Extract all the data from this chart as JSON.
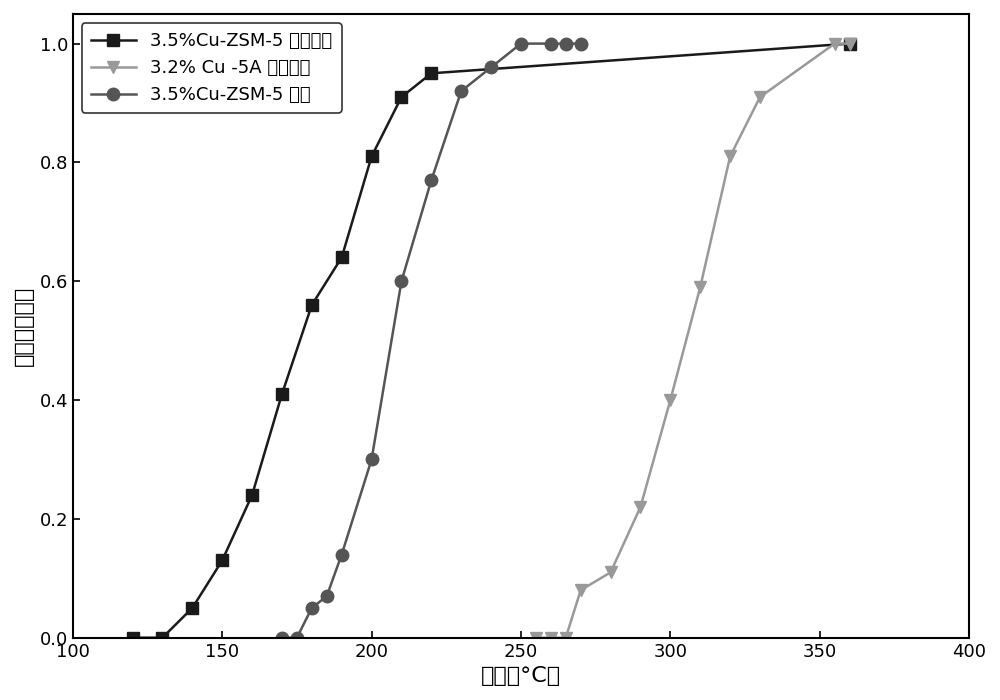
{
  "series1": {
    "label": "3.5%Cu-ZSM-5 分子筛膜",
    "color": "#1a1a1a",
    "marker": "s",
    "markercolor": "#1a1a1a",
    "x": [
      120,
      130,
      140,
      150,
      160,
      170,
      180,
      190,
      200,
      210,
      220,
      360
    ],
    "y": [
      0.0,
      0.0,
      0.05,
      0.13,
      0.24,
      0.41,
      0.56,
      0.64,
      0.81,
      0.91,
      0.95,
      1.0
    ]
  },
  "series2": {
    "label": "3.2% Cu -5A 分子筛膜",
    "color": "#999999",
    "marker": "v",
    "markercolor": "#999999",
    "x": [
      255,
      260,
      265,
      270,
      280,
      290,
      300,
      310,
      320,
      330,
      355,
      360
    ],
    "y": [
      0.0,
      0.0,
      0.0,
      0.08,
      0.11,
      0.22,
      0.4,
      0.59,
      0.81,
      0.91,
      1.0,
      1.0
    ]
  },
  "series3": {
    "label": "3.5%Cu-ZSM-5 颗粒",
    "color": "#555555",
    "marker": "o",
    "markercolor": "#555555",
    "x": [
      170,
      175,
      180,
      185,
      190,
      200,
      210,
      220,
      230,
      240,
      250,
      260,
      265,
      270
    ],
    "y": [
      0.0,
      0.0,
      0.05,
      0.07,
      0.14,
      0.3,
      0.6,
      0.77,
      0.92,
      0.96,
      1.0,
      1.0,
      1.0,
      1.0
    ]
  },
  "xlabel": "温度（°C）",
  "ylabel": "异丙醇转化率",
  "xlim": [
    100,
    400
  ],
  "ylim": [
    0.0,
    1.05
  ],
  "xticks": [
    100,
    150,
    200,
    250,
    300,
    350,
    400
  ],
  "yticks": [
    0.0,
    0.2,
    0.4,
    0.6,
    0.8,
    1.0
  ],
  "linewidth": 1.8,
  "markersize": 9
}
